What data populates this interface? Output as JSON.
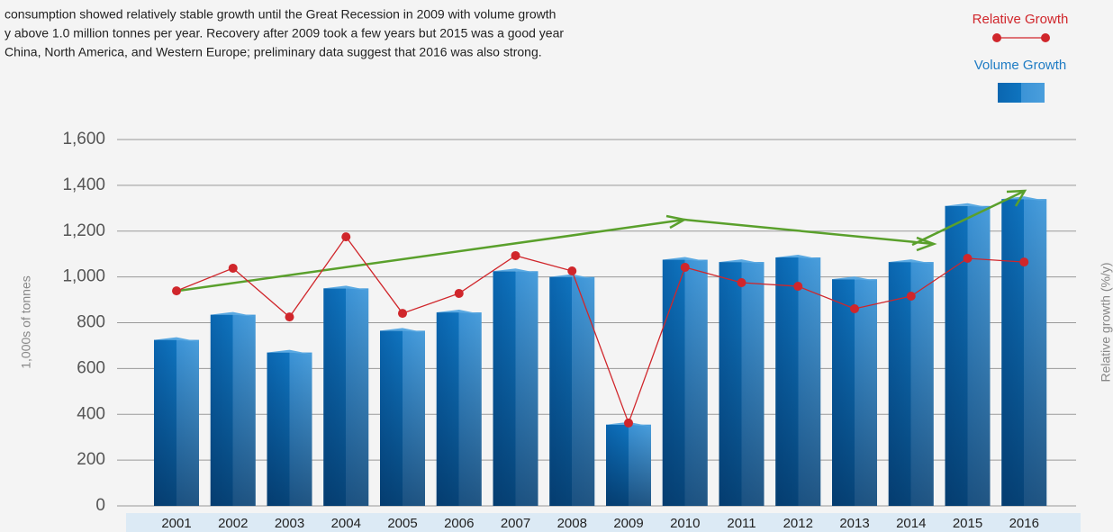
{
  "chart_data": {
    "type": "bar",
    "description": [
      " consumption showed relatively stable growth until the Great Recession in 2009 with volume growth",
      "y above 1.0 million tonnes per year. Recovery after 2009 took a few years but 2015 was a good year",
      " China, North America, and Western Europe; preliminary data suggest that 2016 was also strong."
    ],
    "ylabel": "1,000s of tonnes",
    "y2label": "Relative growth (%/y)",
    "categories": [
      "2001",
      "2002",
      "2003",
      "2004",
      "2005",
      "2006",
      "2007",
      "2008",
      "2009",
      "2010",
      "2011",
      "2012",
      "2013",
      "2014",
      "2015",
      "2016"
    ],
    "series": [
      {
        "name": "Volume Growth",
        "color": "#1f7cc4",
        "values": [
          725,
          835,
          670,
          950,
          765,
          845,
          1025,
          1000,
          355,
          1075,
          1065,
          1085,
          990,
          1065,
          1310,
          1340
        ]
      },
      {
        "name": "Relative Growth",
        "color": "#d0262b",
        "type": "line",
        "values": [
          939,
          1038,
          825,
          1175,
          841,
          928,
          1093,
          1026,
          362,
          1042,
          975,
          959,
          861,
          916,
          1081,
          1065
        ]
      }
    ],
    "ylim": [
      0,
      1600
    ],
    "yticks": [
      0,
      200,
      400,
      600,
      800,
      {
        "value": 1000,
        "label": "1,000"
      },
      {
        "value": 1200,
        "label": "1,200"
      },
      {
        "value": 1400,
        "label": "1,400"
      },
      {
        "value": 1600,
        "label": "1,600"
      }
    ],
    "grid": true
  }
}
